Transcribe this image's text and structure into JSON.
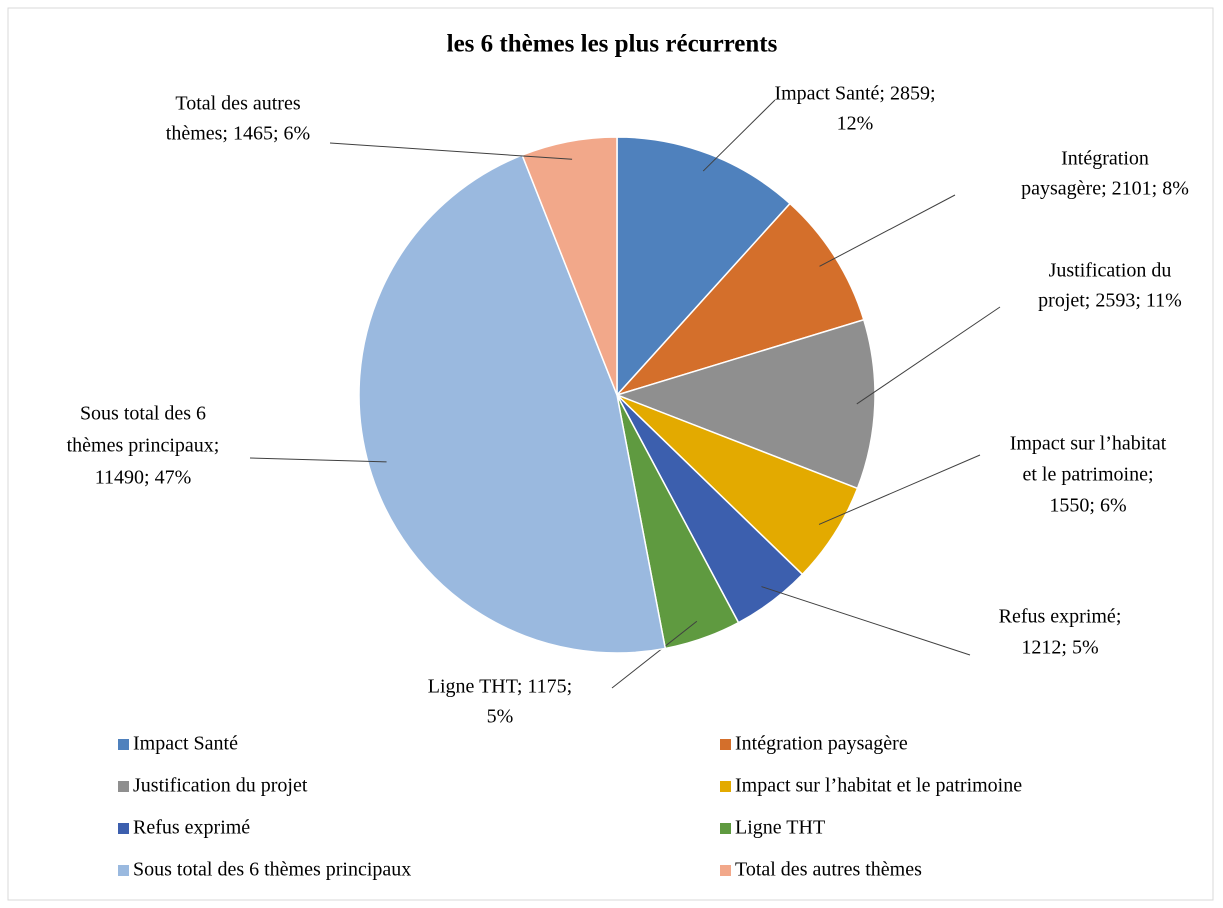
{
  "chart_data": {
    "type": "pie",
    "title": "les 6 thèmes les plus récurrents",
    "categories": [
      "Impact Santé",
      "Intégration paysagère",
      "Justification du projet",
      "Impact sur l’habitat et le patrimoine",
      "Refus exprimé",
      "Ligne THT",
      "Sous total des 6 thèmes principaux",
      "Total des autres thèmes"
    ],
    "values": [
      2859,
      2101,
      2593,
      1550,
      1212,
      1175,
      11490,
      1465
    ],
    "colors": [
      "#4f81bd",
      "#d46f2b",
      "#8f8f8f",
      "#e3aa00",
      "#3c5fae",
      "#5f9a40",
      "#9ab9df",
      "#f2a88a"
    ],
    "data_labels": [
      [
        "Impact Santé; 2859;",
        "12%"
      ],
      [
        "Intégration",
        "paysagère;  2101; 8%"
      ],
      [
        "Justification du",
        "projet; 2593; 11%"
      ],
      [
        "Impact sur l’habitat",
        "et le patrimoine;",
        "1550; 6%"
      ],
      [
        "Refus exprimé;",
        "1212; 5%"
      ],
      [
        "Ligne THT; 1175;",
        "5%"
      ],
      [
        "Sous total des 6",
        "thèmes principaux;",
        "11490; 47%"
      ],
      [
        "Total des autres",
        "thèmes;  1465; 6%"
      ]
    ],
    "legend": "bottom"
  }
}
